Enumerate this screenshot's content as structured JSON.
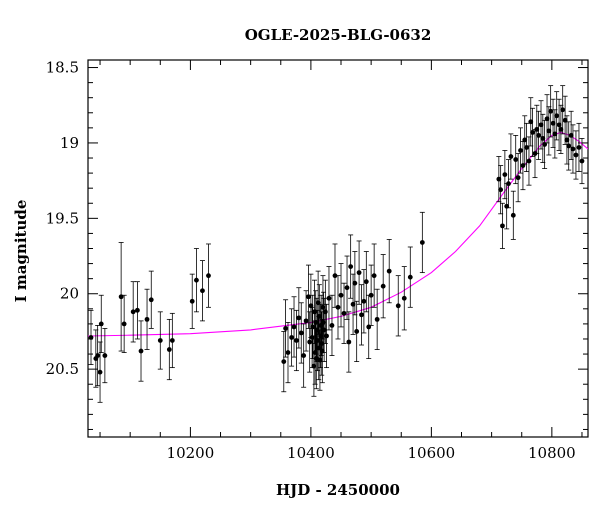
{
  "chart_data": {
    "type": "scatter",
    "title": "OGLE-2025-BLG-0632",
    "xlabel": "HJD - 2450000",
    "ylabel": "I magnitude",
    "xlim": [
      10030,
      10860
    ],
    "ylim": [
      20.95,
      18.45
    ],
    "y_inverted": true,
    "x_ticks": [
      10200,
      10400,
      10600,
      10800
    ],
    "x_tick_labels": [
      "10200",
      "10400",
      "10600",
      "10800"
    ],
    "x_minor_step": 50,
    "y_ticks": [
      18.5,
      19,
      19.5,
      20,
      20.5
    ],
    "y_tick_labels": [
      "18.5",
      "19",
      "19.5",
      "20",
      "20.5"
    ],
    "y_minor_step": 0.1,
    "grid": false,
    "colors": {
      "data": "#000000",
      "model": "#ff00ff",
      "frame": "#000000"
    },
    "model": {
      "name": "",
      "x": [
        10030,
        10100,
        10200,
        10300,
        10400,
        10450,
        10500,
        10550,
        10600,
        10640,
        10680,
        10720,
        10750,
        10780,
        10800,
        10815,
        10830,
        10845,
        10860
      ],
      "y": [
        20.28,
        20.275,
        20.265,
        20.24,
        20.19,
        20.15,
        20.09,
        19.99,
        19.86,
        19.72,
        19.55,
        19.33,
        19.17,
        19.02,
        18.95,
        18.93,
        18.95,
        18.99,
        19.04
      ]
    },
    "series": [
      {
        "x": [
          10035,
          10043,
          10046,
          10050,
          10052,
          10058,
          10085,
          10090,
          10105,
          10112,
          10118,
          10128,
          10135,
          10150,
          10165,
          10170,
          10203,
          10210,
          10220,
          10230,
          10355,
          10358,
          10362,
          10368,
          10372,
          10376,
          10380,
          10384,
          10388,
          10392,
          10396,
          10398,
          10400,
          10402,
          10403,
          10405,
          10406,
          10407,
          10408,
          10409,
          10410,
          10411,
          10412,
          10413,
          10414,
          10415,
          10416,
          10417,
          10418,
          10419,
          10420,
          10421,
          10422,
          10424,
          10426,
          10430,
          10435,
          10440,
          10445,
          10450,
          10455,
          10460,
          10463,
          10466,
          10470,
          10473,
          10476,
          10480,
          10484,
          10488,
          10492,
          10496,
          10500,
          10505,
          10510,
          10520,
          10530,
          10545,
          10555,
          10565,
          10585,
          10712,
          10715,
          10718,
          10722,
          10725,
          10728,
          10732,
          10736,
          10740,
          10744,
          10748,
          10752,
          10755,
          10758,
          10762,
          10765,
          10768,
          10772,
          10775,
          10778,
          10782,
          10785,
          10788,
          10792,
          10795,
          10798,
          10802,
          10805,
          10808,
          10812,
          10815,
          10818,
          10822,
          10825,
          10828,
          10832,
          10835,
          10840,
          10845,
          10850
        ],
        "y": [
          20.29,
          20.43,
          20.41,
          20.52,
          20.2,
          20.41,
          20.02,
          20.2,
          20.12,
          20.11,
          20.38,
          20.17,
          20.04,
          20.31,
          20.37,
          20.31,
          20.05,
          19.91,
          19.98,
          19.88,
          20.45,
          20.23,
          20.39,
          20.29,
          20.22,
          20.31,
          20.16,
          20.26,
          20.41,
          20.18,
          20.02,
          20.32,
          20.08,
          20.29,
          20.22,
          20.48,
          20.12,
          20.39,
          20.19,
          20.43,
          20.24,
          20.31,
          20.06,
          20.36,
          20.15,
          20.44,
          20.28,
          20.21,
          20.33,
          20.38,
          20.09,
          20.19,
          20.24,
          20.12,
          20.28,
          20.03,
          20.21,
          19.88,
          20.09,
          20.01,
          20.13,
          19.96,
          20.32,
          19.82,
          20.07,
          19.93,
          20.25,
          19.86,
          20.14,
          20.05,
          19.92,
          20.22,
          20.01,
          19.88,
          20.17,
          19.95,
          19.85,
          20.08,
          20.03,
          19.89,
          19.66,
          19.24,
          19.31,
          19.55,
          19.21,
          19.42,
          19.27,
          19.09,
          19.48,
          19.11,
          19.23,
          19.05,
          19.15,
          18.98,
          19.03,
          19.12,
          18.86,
          18.93,
          19.07,
          18.91,
          18.95,
          18.88,
          18.97,
          19.01,
          18.84,
          18.92,
          18.79,
          18.87,
          18.94,
          18.82,
          18.88,
          18.91,
          18.78,
          18.85,
          18.98,
          19.02,
          18.95,
          19.04,
          19.08,
          19.03,
          19.12
        ],
        "err": [
          0.18,
          0.19,
          0.2,
          0.2,
          0.19,
          0.18,
          0.36,
          0.19,
          0.2,
          0.19,
          0.2,
          0.2,
          0.19,
          0.19,
          0.2,
          0.18,
          0.18,
          0.21,
          0.2,
          0.21,
          0.2,
          0.19,
          0.2,
          0.19,
          0.2,
          0.2,
          0.2,
          0.2,
          0.21,
          0.2,
          0.21,
          0.2,
          0.21,
          0.2,
          0.21,
          0.2,
          0.21,
          0.21,
          0.21,
          0.2,
          0.21,
          0.2,
          0.21,
          0.21,
          0.21,
          0.2,
          0.21,
          0.2,
          0.21,
          0.21,
          0.21,
          0.2,
          0.21,
          0.21,
          0.21,
          0.21,
          0.2,
          0.21,
          0.21,
          0.21,
          0.2,
          0.21,
          0.2,
          0.21,
          0.2,
          0.21,
          0.2,
          0.21,
          0.2,
          0.21,
          0.2,
          0.21,
          0.2,
          0.21,
          0.2,
          0.21,
          0.21,
          0.2,
          0.21,
          0.2,
          0.2,
          0.15,
          0.16,
          0.15,
          0.16,
          0.15,
          0.16,
          0.15,
          0.16,
          0.16,
          0.16,
          0.15,
          0.16,
          0.16,
          0.16,
          0.16,
          0.16,
          0.16,
          0.16,
          0.16,
          0.16,
          0.16,
          0.16,
          0.16,
          0.16,
          0.16,
          0.17,
          0.16,
          0.16,
          0.16,
          0.17,
          0.16,
          0.16,
          0.16,
          0.16,
          0.16,
          0.16,
          0.16,
          0.16,
          0.16,
          0.15
        ]
      }
    ]
  }
}
